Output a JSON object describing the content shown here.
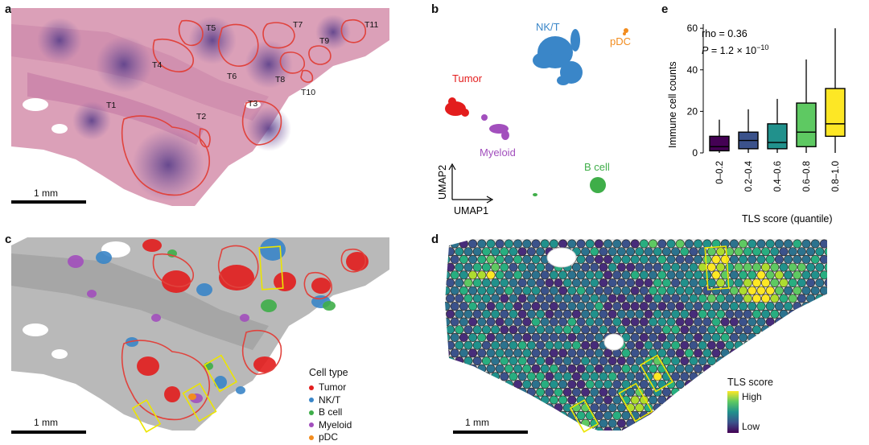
{
  "panel_labels": {
    "a": "a",
    "b": "b",
    "c": "c",
    "d": "d",
    "e": "e"
  },
  "panel_a": {
    "regions": [
      "T1",
      "T2",
      "T3",
      "T4",
      "T5",
      "T6",
      "T7",
      "T8",
      "T9",
      "T10",
      "T11"
    ],
    "scale_bar": "1 mm"
  },
  "panel_b": {
    "clusters": [
      {
        "name": "NK/T",
        "color": "#3a86c8"
      },
      {
        "name": "pDC",
        "color": "#f28c1e"
      },
      {
        "name": "Tumor",
        "color": "#e31d1d"
      },
      {
        "name": "Myeloid",
        "color": "#a24fbd"
      },
      {
        "name": "B cell",
        "color": "#3fae49"
      }
    ],
    "axis_x": "UMAP1",
    "axis_y": "UMAP2"
  },
  "panel_c": {
    "legend_title": "Cell type",
    "legend": [
      {
        "name": "Tumor",
        "color": "#e31d1d"
      },
      {
        "name": "NK/T",
        "color": "#3a86c8"
      },
      {
        "name": "B cell",
        "color": "#3fae49"
      },
      {
        "name": "Myeloid",
        "color": "#a24fbd"
      },
      {
        "name": "pDC",
        "color": "#f28c1e"
      }
    ],
    "scale_bar": "1 mm"
  },
  "panel_d": {
    "legend_title": "TLS score",
    "legend_high": "High",
    "legend_low": "Low",
    "scale_bar": "1 mm"
  },
  "chart_data": {
    "type": "box",
    "title": "",
    "xlabel": "TLS score (quantile)",
    "ylabel": "Immune cell counts",
    "ylim": [
      0,
      62
    ],
    "yticks": [
      "0",
      "20",
      "40",
      "60"
    ],
    "annotation_rho": "rho = 0.36",
    "annotation_p_prefix": "P",
    "annotation_p_value": " = 1.2 × 10",
    "annotation_p_exp": "−10",
    "categories": [
      "0–0.2",
      "0.2–0.4",
      "0.4–0.6",
      "0.6–0.8",
      "0.8–1.0"
    ],
    "colors": [
      "#440154",
      "#3b528b",
      "#21918c",
      "#5ec962",
      "#fde725"
    ],
    "boxes": [
      {
        "whisker_low": 0,
        "q1": 1,
        "median": 3,
        "q3": 8,
        "whisker_high": 16
      },
      {
        "whisker_low": 0,
        "q1": 2,
        "median": 6,
        "q3": 10,
        "whisker_high": 21
      },
      {
        "whisker_low": 0,
        "q1": 2,
        "median": 5,
        "q3": 14,
        "whisker_high": 26
      },
      {
        "whisker_low": 0,
        "q1": 3,
        "median": 10,
        "q3": 24,
        "whisker_high": 45
      },
      {
        "whisker_low": 0,
        "q1": 8,
        "median": 14,
        "q3": 31,
        "whisker_high": 60
      }
    ]
  }
}
